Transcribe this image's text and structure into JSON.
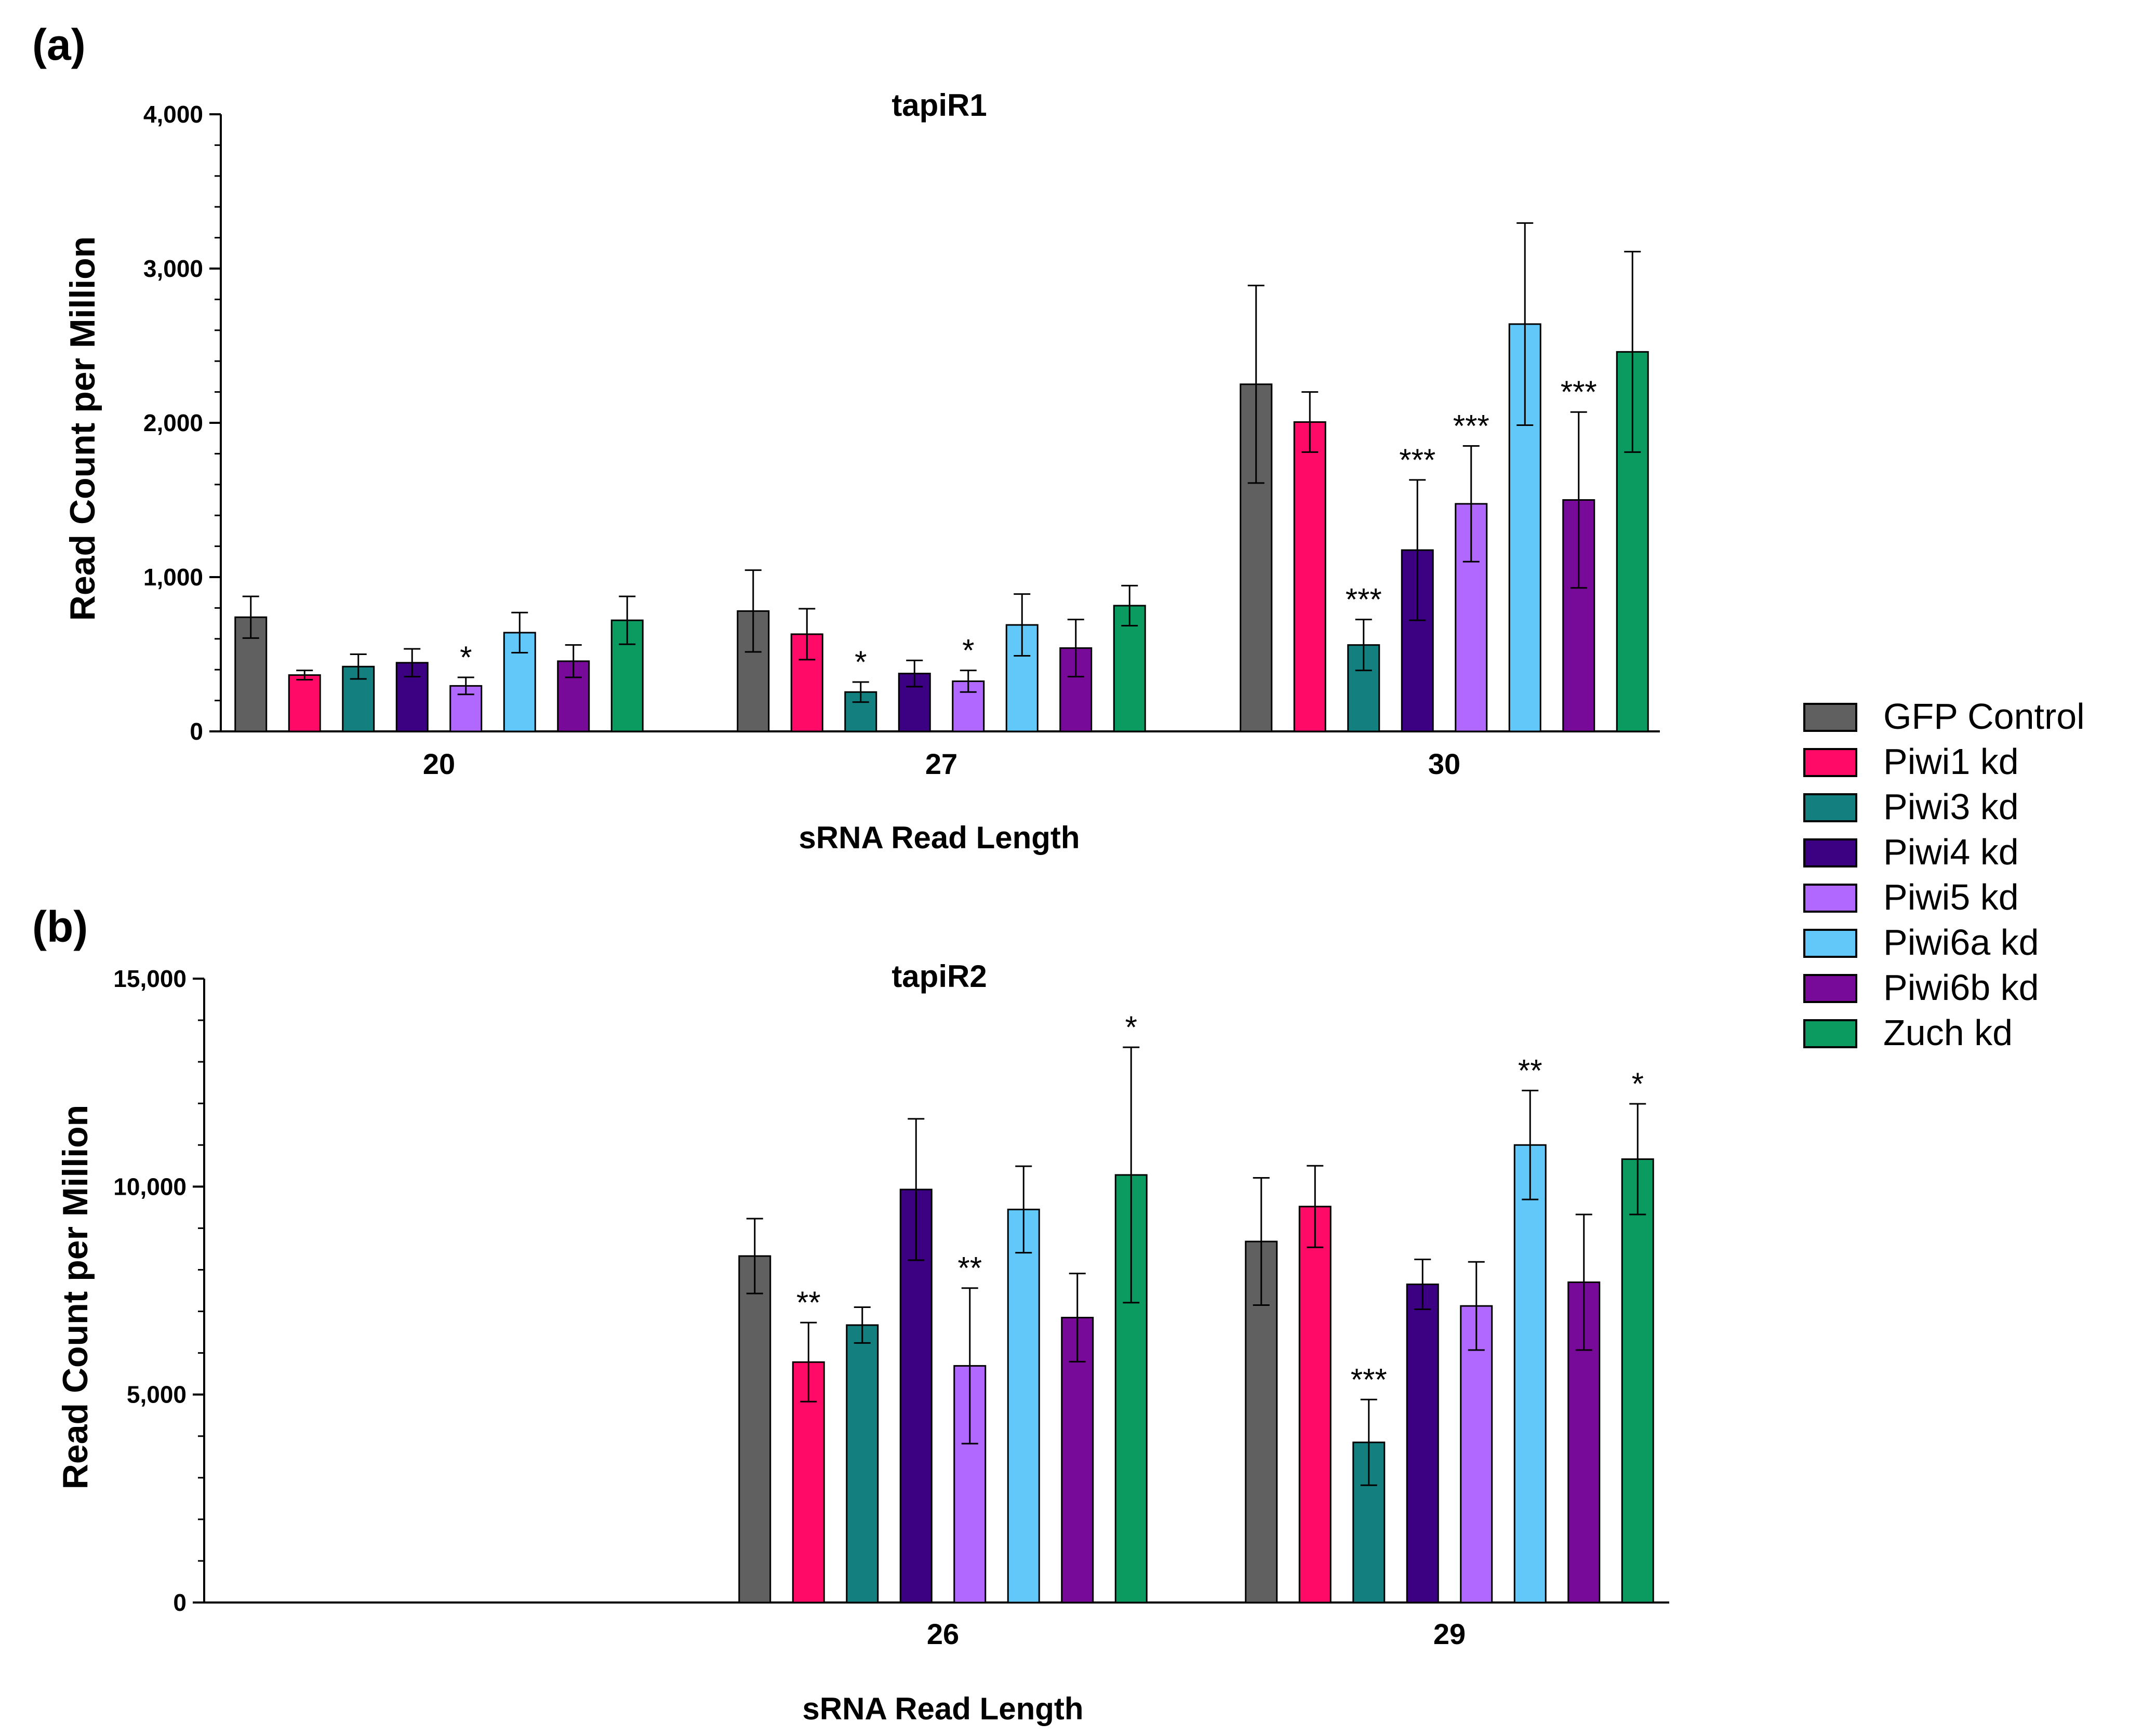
{
  "legend": [
    {
      "name": "GFP Control",
      "color": "#606060"
    },
    {
      "name": "Piwi1 kd",
      "color": "#ff0a66"
    },
    {
      "name": "Piwi3 kd",
      "color": "#137f7f"
    },
    {
      "name": "Piwi4 kd",
      "color": "#3c0082"
    },
    {
      "name": "Piwi5 kd",
      "color": "#b068ff"
    },
    {
      "name": "Piwi6a kd",
      "color": "#62c8fa"
    },
    {
      "name": "Piwi6b kd",
      "color": "#780a9a"
    },
    {
      "name": "Zuch kd",
      "color": "#0b9a60"
    }
  ],
  "chart_data": [
    {
      "panel": "(a)",
      "type": "bar",
      "title": "tapiR1",
      "xlabel": "sRNA Read Length",
      "ylabel": "Read Count per Million",
      "ylim": [
        0,
        4000
      ],
      "yticks": [
        0,
        1000,
        2000,
        3000,
        4000
      ],
      "ytick_labels": [
        "0",
        "1,000",
        "2,000",
        "3,000",
        "4,000"
      ],
      "categories": [
        "20",
        "27",
        "30"
      ],
      "series": [
        {
          "name": "GFP Control",
          "values": [
            740,
            780,
            2250
          ],
          "errors": [
            135,
            265,
            640
          ],
          "sig": [
            "",
            "",
            ""
          ]
        },
        {
          "name": "Piwi1 kd",
          "values": [
            365,
            630,
            2005
          ],
          "errors": [
            30,
            165,
            195
          ],
          "sig": [
            "",
            "",
            ""
          ]
        },
        {
          "name": "Piwi3 kd",
          "values": [
            420,
            255,
            560
          ],
          "errors": [
            80,
            65,
            165
          ],
          "sig": [
            "",
            "*",
            "***"
          ]
        },
        {
          "name": "Piwi4 kd",
          "values": [
            445,
            375,
            1175
          ],
          "errors": [
            90,
            85,
            455
          ],
          "sig": [
            "",
            "",
            "***"
          ]
        },
        {
          "name": "Piwi5 kd",
          "values": [
            295,
            325,
            1475
          ],
          "errors": [
            55,
            70,
            375
          ],
          "sig": [
            "*",
            "*",
            "***"
          ]
        },
        {
          "name": "Piwi6a kd",
          "values": [
            640,
            690,
            2640
          ],
          "errors": [
            130,
            200,
            655
          ],
          "sig": [
            "",
            "",
            ""
          ]
        },
        {
          "name": "Piwi6b kd",
          "values": [
            455,
            540,
            1500
          ],
          "errors": [
            105,
            185,
            570
          ],
          "sig": [
            "",
            "",
            "***"
          ]
        },
        {
          "name": "Zuch kd",
          "values": [
            720,
            815,
            2460
          ],
          "errors": [
            155,
            130,
            650
          ],
          "sig": [
            "",
            "",
            ""
          ]
        }
      ]
    },
    {
      "panel": "(b)",
      "type": "bar",
      "title": "tapiR2",
      "xlabel": "sRNA Read Length",
      "ylabel": "Read Count per Million",
      "ylim": [
        0,
        15000
      ],
      "yticks": [
        0,
        5000,
        10000,
        15000
      ],
      "ytick_labels": [
        "0",
        "5,000",
        "10,000",
        "15,000"
      ],
      "categories": [
        "",
        "26",
        "29"
      ],
      "series": [
        {
          "name": "GFP Control",
          "values": [
            null,
            8330,
            8680
          ],
          "errors": [
            null,
            900,
            1530
          ],
          "sig": [
            "",
            "",
            ""
          ]
        },
        {
          "name": "Piwi1 kd",
          "values": [
            null,
            5780,
            9520
          ],
          "errors": [
            null,
            950,
            980
          ],
          "sig": [
            "",
            "**",
            ""
          ]
        },
        {
          "name": "Piwi3 kd",
          "values": [
            null,
            6670,
            3850
          ],
          "errors": [
            null,
            430,
            1030
          ],
          "sig": [
            "",
            "",
            "***"
          ]
        },
        {
          "name": "Piwi4 kd",
          "values": [
            null,
            9930,
            7650
          ],
          "errors": [
            null,
            1700,
            600
          ],
          "sig": [
            "",
            "",
            ""
          ]
        },
        {
          "name": "Piwi5 kd",
          "values": [
            null,
            5690,
            7130
          ],
          "errors": [
            null,
            1870,
            1060
          ],
          "sig": [
            "",
            "**",
            ""
          ]
        },
        {
          "name": "Piwi6a kd",
          "values": [
            null,
            9450,
            11000
          ],
          "errors": [
            null,
            1040,
            1310
          ],
          "sig": [
            "",
            "",
            "**"
          ]
        },
        {
          "name": "Piwi6b kd",
          "values": [
            null,
            6850,
            7700
          ],
          "errors": [
            null,
            1060,
            1630
          ],
          "sig": [
            "",
            "",
            ""
          ]
        },
        {
          "name": "Zuch kd",
          "values": [
            null,
            10280,
            10660
          ],
          "errors": [
            null,
            3070,
            1330
          ],
          "sig": [
            "",
            "*",
            "*"
          ]
        }
      ]
    }
  ]
}
